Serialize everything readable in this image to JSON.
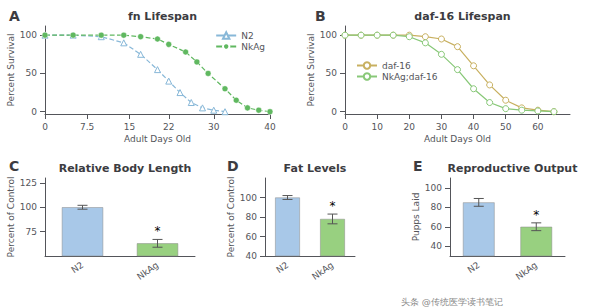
{
  "chart_data": [
    {
      "type": "line",
      "title": "fn Lifespan",
      "xlabel": "Adult Days Old",
      "ylabel": "Percent Survival",
      "xlim": [
        0,
        40
      ],
      "xticks": [
        0,
        7.5,
        15,
        22,
        30,
        40
      ],
      "ylim": [
        -3,
        112
      ],
      "yticks": [
        0,
        50,
        100
      ],
      "grid": false,
      "legend": "upper right",
      "annotations": [
        {
          "text": "A"
        }
      ],
      "series": [
        {
          "name": "N2",
          "color": "#88b8d8",
          "marker": "open_triangle",
          "line_style": "dashed",
          "x": [
            0,
            5,
            10,
            14,
            17,
            20,
            22,
            24,
            26,
            28,
            30,
            32
          ],
          "values": [
            100,
            100,
            98,
            90,
            75,
            55,
            40,
            25,
            12,
            5,
            2,
            0
          ]
        },
        {
          "name": "NkAg",
          "color": "#60b860",
          "marker": "circle",
          "line_style": "dashed",
          "x": [
            0,
            5,
            10,
            14,
            17,
            20,
            22,
            25,
            27,
            29,
            32,
            34,
            36,
            38,
            40
          ],
          "values": [
            100,
            100,
            100,
            100,
            98,
            95,
            88,
            78,
            65,
            50,
            30,
            15,
            5,
            2,
            0
          ]
        }
      ]
    },
    {
      "type": "line",
      "title": "daf-16 Lifespan",
      "xlabel": "Adult Days Old",
      "ylabel": "Percent Survival",
      "xlim": [
        0,
        70
      ],
      "xticks": [
        0,
        10,
        20,
        30,
        40,
        50,
        60
      ],
      "ylim": [
        -3,
        112
      ],
      "yticks": [
        0,
        50,
        100
      ],
      "grid": false,
      "legend": "center left",
      "annotations": [
        {
          "text": "B"
        }
      ],
      "series": [
        {
          "name": "daf-16",
          "color": "#c8b060",
          "marker": "open_circle",
          "line_style": "solid",
          "x": [
            0,
            5,
            10,
            15,
            20,
            25,
            30,
            35,
            40,
            45,
            50,
            55,
            60,
            65
          ],
          "values": [
            100,
            100,
            100,
            100,
            100,
            98,
            95,
            85,
            60,
            35,
            15,
            5,
            2,
            0
          ]
        },
        {
          "name": "NkAg;daf-16",
          "color": "#88c878",
          "marker": "open_circle",
          "line_style": "solid",
          "x": [
            0,
            5,
            10,
            15,
            20,
            25,
            30,
            35,
            40,
            45,
            50,
            55,
            60,
            65
          ],
          "values": [
            100,
            100,
            100,
            100,
            98,
            90,
            75,
            55,
            30,
            12,
            4,
            2,
            1,
            0
          ]
        }
      ]
    },
    {
      "type": "bar",
      "title": "Relative Body Length",
      "ylabel": "Percent of Control",
      "categories": [
        "N2",
        "NkAg"
      ],
      "values": [
        100,
        63
      ],
      "errors": [
        2,
        4
      ],
      "colors": [
        "#a8c8e8",
        "#98d080"
      ],
      "ylim": [
        50,
        130
      ],
      "yticks": [
        75,
        100,
        125
      ],
      "grid": false,
      "annotations": [
        {
          "text": "C"
        },
        {
          "text": "*",
          "category": "NkAg"
        }
      ]
    },
    {
      "type": "bar",
      "title": "Fat Levels",
      "ylabel": "Percent of Control",
      "categories": [
        "N2",
        "NkAg"
      ],
      "values": [
        100,
        78
      ],
      "errors": [
        2,
        5
      ],
      "colors": [
        "#a8c8e8",
        "#98d080"
      ],
      "ylim": [
        40,
        120
      ],
      "yticks": [
        40,
        60,
        80,
        100
      ],
      "grid": false,
      "annotations": [
        {
          "text": "D"
        },
        {
          "text": "*",
          "category": "NkAg"
        }
      ]
    },
    {
      "type": "bar",
      "title": "Reproductive Output",
      "ylabel": "Pupps Laid",
      "categories": [
        "N2",
        "NkAg"
      ],
      "values": [
        85,
        60
      ],
      "errors": [
        4,
        4
      ],
      "colors": [
        "#a8c8e8",
        "#98d080"
      ],
      "ylim": [
        30,
        110
      ],
      "yticks": [
        40,
        60,
        80,
        100
      ],
      "grid": false,
      "annotations": [
        {
          "text": "E"
        },
        {
          "text": "*",
          "category": "NkAg"
        }
      ]
    }
  ],
  "annotations": [
    "头条 @传统医学读书笔记"
  ]
}
